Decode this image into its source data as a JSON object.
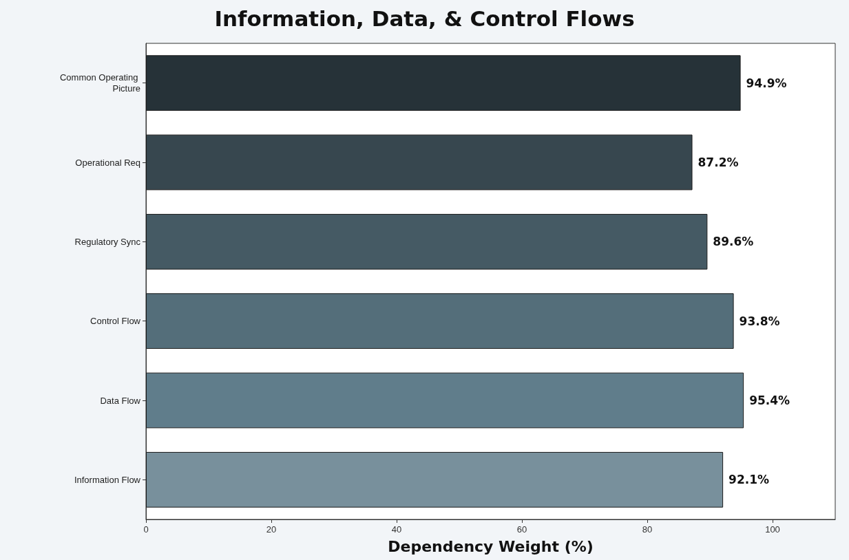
{
  "chart_data": {
    "type": "bar",
    "orientation": "horizontal",
    "title": "Information, Data, & Control Flows",
    "xlabel": "Dependency Weight (%)",
    "categories": [
      "Common Operating Picture",
      "Operational Req",
      "Regulatory Sync",
      "Control Flow",
      "Data Flow",
      "Information Flow"
    ],
    "values": [
      94.9,
      87.2,
      89.6,
      93.8,
      95.4,
      92.1
    ],
    "colors": [
      "#263238",
      "#37474f",
      "#455a64",
      "#546e7a",
      "#607d8b",
      "#78909c"
    ],
    "value_labels": [
      "94.9%",
      "87.2%",
      "89.6%",
      "93.8%",
      "95.4%",
      "92.1%"
    ],
    "xlim": [
      0,
      110
    ],
    "xticks": [
      0,
      20,
      40,
      60,
      80,
      100
    ],
    "grid": false
  }
}
